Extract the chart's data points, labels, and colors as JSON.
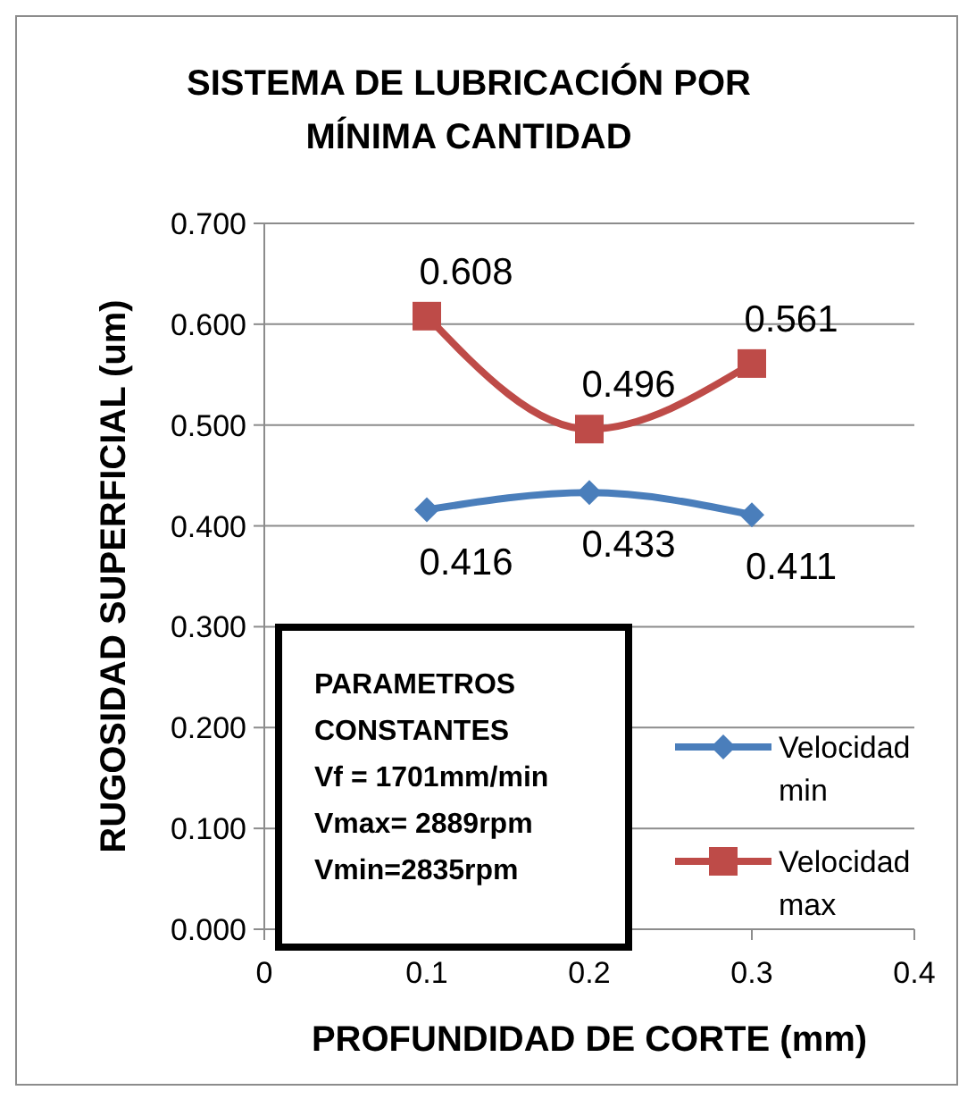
{
  "chart_data": {
    "type": "line",
    "title": "SISTEMA DE LUBRICACIÓN POR MÍNIMA CANTIDAD",
    "xlabel": "PROFUNDIDAD DE CORTE (mm)",
    "ylabel": "RUGOSIDAD SUPERFICIAL (um)",
    "x": [
      0.1,
      0.2,
      0.3
    ],
    "series": [
      {
        "name": "Velocidad min",
        "color": "#4a7ebb",
        "values": [
          0.416,
          0.433,
          0.411
        ],
        "marker": "diamond"
      },
      {
        "name": "Velocidad max",
        "color": "#be4b48",
        "values": [
          0.608,
          0.496,
          0.561
        ],
        "marker": "square"
      }
    ],
    "xlim": [
      0,
      0.4
    ],
    "xticks": [
      0,
      0.1,
      0.2,
      0.3,
      0.4
    ],
    "ylim": [
      0,
      0.7
    ],
    "yticks": [
      {
        "value": 0,
        "label": "0.000"
      },
      {
        "value": 0.1,
        "label": "0.100"
      },
      {
        "value": 0.2,
        "label": "0.200"
      },
      {
        "value": 0.3,
        "label": "0.300"
      },
      {
        "value": 0.4,
        "label": "0.400"
      },
      {
        "value": 0.5,
        "label": "0.500"
      },
      {
        "value": 0.6,
        "label": "0.600"
      },
      {
        "value": 0.7,
        "label": "0.700"
      }
    ],
    "grid": "y",
    "legend": "bottom right",
    "data_labels": true,
    "annotations": [
      "PARAMETROS",
      "CONSTANTES",
      "Vf = 1701mm/min",
      "Vmax= 2889rpm",
      "Vmin=2835rpm"
    ]
  }
}
